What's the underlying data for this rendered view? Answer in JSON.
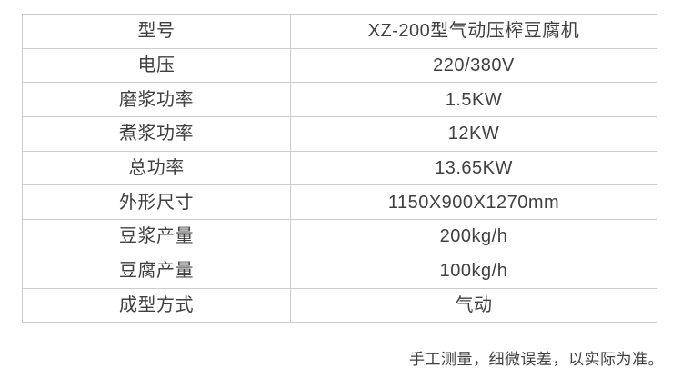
{
  "colors": {
    "border": "#cccccc",
    "text": "#404040",
    "background": "#ffffff"
  },
  "table": {
    "rows": [
      {
        "label": "型号",
        "value": "XZ-200型气动压榨豆腐机"
      },
      {
        "label": "电压",
        "value": "220/380V"
      },
      {
        "label": "磨浆功率",
        "value": "1.5KW"
      },
      {
        "label": "煮浆功率",
        "value": "12KW"
      },
      {
        "label": "总功率",
        "value": "13.65KW"
      },
      {
        "label": "外形尺寸",
        "value": "1150X900X1270mm"
      },
      {
        "label": "豆浆产量",
        "value": "200kg/h"
      },
      {
        "label": "豆腐产量",
        "value": "100kg/h"
      },
      {
        "label": "成型方式",
        "value": "气动"
      }
    ]
  },
  "footer": {
    "note": "手工测量，细微误差，以实际为准。"
  }
}
